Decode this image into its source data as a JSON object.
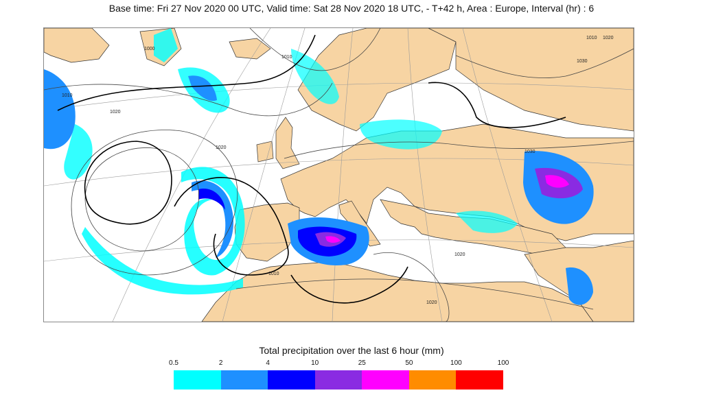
{
  "header": {
    "text": "Base time: Fri 27 Nov 2020 00 UTC, Valid time: Sat 28 Nov 2020 18 UTC, - T+42 h, Area : Europe, Interval (hr) : 6"
  },
  "map": {
    "land_color": "#f7d4a3",
    "sea_color": "#ffffff",
    "isobar_labels": [
      "1010",
      "1020",
      "1000",
      "1010",
      "1020",
      "1030",
      "1020",
      "1010",
      "1020",
      "1010",
      "1020",
      "1030"
    ]
  },
  "legend": {
    "title": "Total precipitation over the last 6 hour (mm)",
    "ticks": [
      "0.5",
      "2",
      "4",
      "10",
      "25",
      "50",
      "100",
      "100"
    ],
    "colors": [
      "#00ffff",
      "#1e90ff",
      "#0000ff",
      "#8a2be2",
      "#ff00ff",
      "#ff8c00",
      "#ff0000"
    ]
  }
}
